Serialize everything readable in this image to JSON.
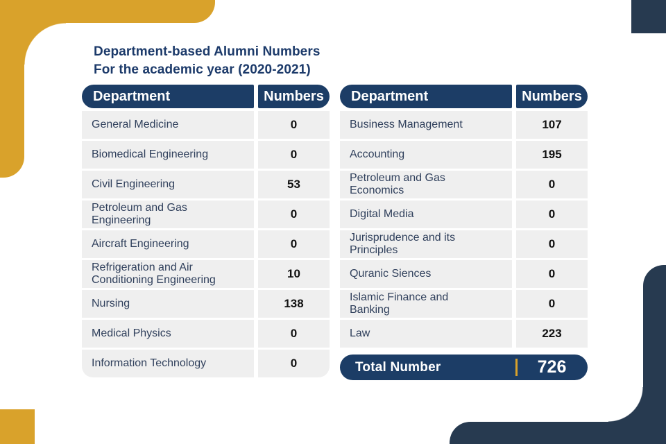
{
  "title": {
    "line1": "Department-based Alumni Numbers",
    "line2": "For the academic year (2020-2021)"
  },
  "colors": {
    "gold": "#D9A22B",
    "navy-deco": "#273A50",
    "navy-header": "#1C3D66",
    "row-bg": "#EFEFEF",
    "title-text": "#1C3A6A",
    "dept-text": "#30405C",
    "number-text": "#111111"
  },
  "left_table": {
    "header": {
      "department": "Department",
      "numbers": "Numbers"
    },
    "rows": [
      {
        "department": "General Medicine",
        "value": "0"
      },
      {
        "department": "Biomedical Engineering",
        "value": "0"
      },
      {
        "department": "Civil Engineering",
        "value": "53"
      },
      {
        "department": "Petroleum and Gas Engineering",
        "value": "0"
      },
      {
        "department": "Aircraft Engineering",
        "value": "0"
      },
      {
        "department": "Refrigeration and Air Conditioning Engineering",
        "value": "10"
      },
      {
        "department": "Nursing",
        "value": "138"
      },
      {
        "department": "Medical Physics",
        "value": "0"
      },
      {
        "department": "Information Technology",
        "value": "0"
      }
    ]
  },
  "right_table": {
    "header": {
      "department": "Department",
      "numbers": "Numbers"
    },
    "rows": [
      {
        "department": "Business Management",
        "value": "107"
      },
      {
        "department": "Accounting",
        "value": "195"
      },
      {
        "department": "Petroleum and Gas Economics",
        "value": "0"
      },
      {
        "department": "Digital Media",
        "value": "0"
      },
      {
        "department": "Jurisprudence and its Principles",
        "value": "0"
      },
      {
        "department": "Quranic Siences",
        "value": "0"
      },
      {
        "department": "Islamic Finance and Banking",
        "value": "0"
      },
      {
        "department": "Law",
        "value": "223"
      }
    ]
  },
  "total": {
    "label": "Total Number",
    "value": "726"
  }
}
